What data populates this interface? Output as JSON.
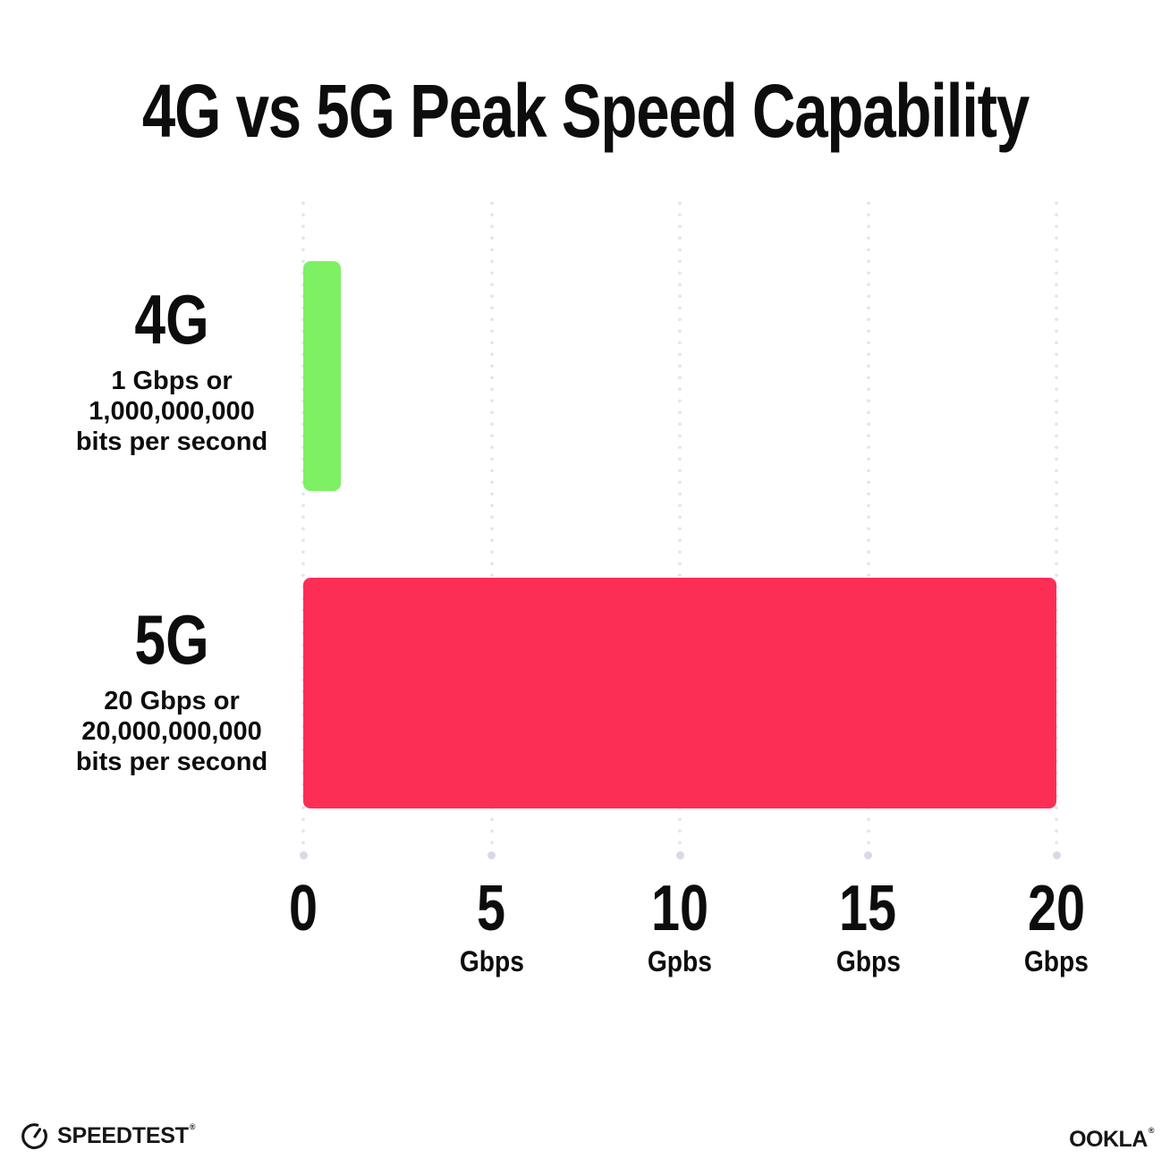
{
  "title": "4G vs 5G Peak Speed Capability",
  "chart_data": {
    "type": "bar",
    "orientation": "horizontal",
    "title": "4G vs 5G Peak Speed Capability",
    "xlabel": "",
    "ylabel": "",
    "xlim": [
      0,
      20
    ],
    "grid": "vertical-dotted",
    "legend": "none",
    "unit": "Gbps",
    "categories": [
      "4G",
      "5G"
    ],
    "values": [
      1,
      20
    ],
    "rows": [
      {
        "name": "4G",
        "value_gbps": 1,
        "sublabel": [
          "1 Gbps or",
          "1,000,000,000",
          "bits per second"
        ],
        "color": "#7DF163"
      },
      {
        "name": "5G",
        "value_gbps": 20,
        "sublabel": [
          "20 Gbps or",
          "20,000,000,000",
          "bits per second"
        ],
        "color": "#FD2E56"
      }
    ],
    "x_ticks": [
      {
        "value": 0,
        "label": "0",
        "unit": ""
      },
      {
        "value": 5,
        "label": "5",
        "unit": "Gbps"
      },
      {
        "value": 10,
        "label": "10",
        "unit": "Gpbs"
      },
      {
        "value": 15,
        "label": "15",
        "unit": "Gbps"
      },
      {
        "value": 20,
        "label": "20",
        "unit": "Gbps"
      }
    ]
  },
  "footer": {
    "speedtest": {
      "label": "SPEEDTEST",
      "trademark": "®"
    },
    "ookla": {
      "label": "OOKLA",
      "trademark": "®"
    }
  },
  "colors": {
    "background": "#FFFFFF",
    "text": "#0D0D0D",
    "bar_4g": "#7DF163",
    "bar_5g": "#FD2E56",
    "grid_dot": "#E4E4EE",
    "grid_end_dot": "#D9D9E6"
  }
}
